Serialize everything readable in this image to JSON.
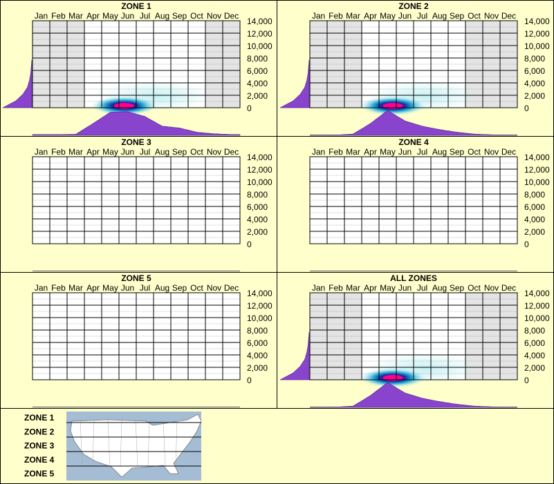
{
  "months": [
    "Jan",
    "Feb",
    "Mar",
    "Apr",
    "May",
    "Jun",
    "Jul",
    "Aug",
    "Sep",
    "Oct",
    "Nov",
    "Dec"
  ],
  "y_ticks": [
    "14,000",
    "12,000",
    "10,000",
    "8,000",
    "6,000",
    "4,000",
    "2,000",
    "0"
  ],
  "colors": {
    "background": "#ffffcc",
    "grid_shade": "#e4e4e4",
    "grid_line": "#000000",
    "profile_fill": "#8844cc",
    "density_low": "#bfeff2",
    "density_mid": "#2ab0d8",
    "density_high": "#1020a0",
    "density_peak": "#ff0090"
  },
  "chart_data": [
    {
      "type": "heatmap",
      "title": "ZONE 1",
      "has_data": true,
      "ylim": [
        0,
        14000
      ],
      "shaded_months": [
        "Jan",
        "Feb",
        "Mar",
        "Nov",
        "Dec"
      ],
      "density_center_month": 4.8,
      "density_center_y": 300,
      "month_profile": [
        0.03,
        0.03,
        0.04,
        0.45,
        0.88,
        0.9,
        0.72,
        0.35,
        0.28,
        0.12,
        0.06,
        0.03
      ],
      "altitude_profile": [
        1.0,
        0.55,
        0.3,
        0.15,
        0.08,
        0.04,
        0.02,
        0.0
      ]
    },
    {
      "type": "heatmap",
      "title": "ZONE 2",
      "has_data": true,
      "ylim": [
        0,
        14000
      ],
      "shaded_months": [
        "Jan",
        "Feb",
        "Mar",
        "Oct",
        "Nov",
        "Dec"
      ],
      "density_center_month": 4.3,
      "density_center_y": 300,
      "month_profile": [
        0.0,
        0.01,
        0.05,
        0.45,
        0.95,
        0.55,
        0.35,
        0.22,
        0.12,
        0.05,
        0.02,
        0.0
      ],
      "altitude_profile": [
        1.0,
        0.55,
        0.3,
        0.15,
        0.08,
        0.04,
        0.02,
        0.0
      ]
    },
    {
      "type": "heatmap",
      "title": "ZONE 3",
      "has_data": false,
      "ylim": [
        0,
        14000
      ]
    },
    {
      "type": "heatmap",
      "title": "ZONE 4",
      "has_data": false,
      "ylim": [
        0,
        14000
      ]
    },
    {
      "type": "heatmap",
      "title": "ZONE 5",
      "has_data": false,
      "ylim": [
        0,
        14000
      ]
    },
    {
      "type": "heatmap",
      "title": "ALL ZONES",
      "has_data": true,
      "ylim": [
        0,
        14000
      ],
      "shaded_months": [
        "Jan",
        "Feb",
        "Mar",
        "Oct",
        "Nov",
        "Dec"
      ],
      "density_center_month": 4.3,
      "density_center_y": 300,
      "month_profile": [
        0.0,
        0.01,
        0.05,
        0.45,
        0.95,
        0.55,
        0.35,
        0.22,
        0.12,
        0.05,
        0.02,
        0.0
      ],
      "altitude_profile": [
        1.0,
        0.55,
        0.3,
        0.15,
        0.08,
        0.04,
        0.02,
        0.0
      ]
    }
  ],
  "legend": {
    "zones": [
      "ZONE 1",
      "ZONE 2",
      "ZONE 3",
      "ZONE 4",
      "ZONE 5"
    ],
    "map_icon": "us-map-icon"
  }
}
